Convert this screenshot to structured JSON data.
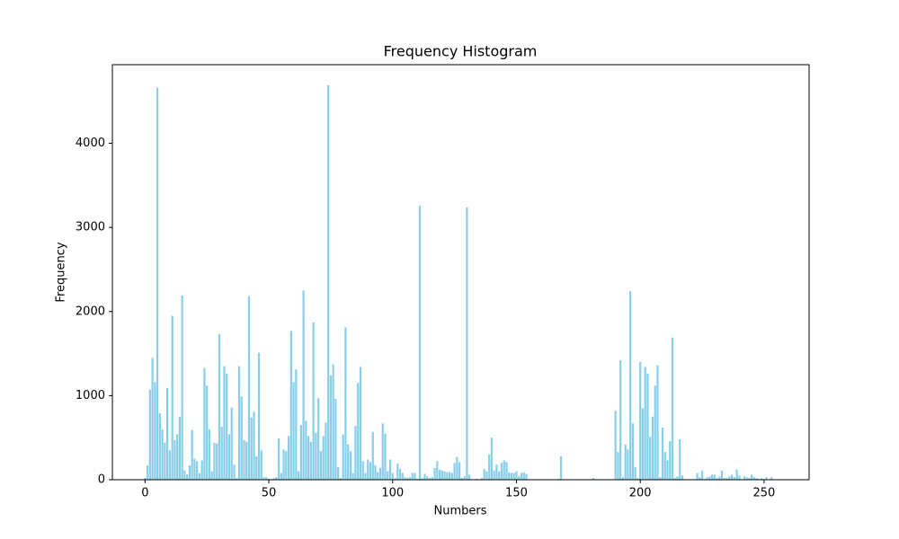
{
  "chart_data": {
    "type": "bar",
    "title": "Frequency Histogram",
    "x_label": "Numbers",
    "y_label": "Frequency",
    "color": "#87ceeb",
    "grid": false,
    "xlim": [
      -13.19,
      268.19
    ],
    "ylim": [
      0,
      4935
    ],
    "xticks": [
      0,
      50,
      100,
      150,
      200,
      250
    ],
    "yticks": [
      0,
      1000,
      2000,
      3000,
      4000
    ],
    "x": [
      0,
      1,
      2,
      3,
      4,
      5,
      6,
      7,
      8,
      9,
      10,
      11,
      12,
      13,
      14,
      15,
      16,
      17,
      18,
      19,
      20,
      21,
      22,
      23,
      24,
      25,
      26,
      27,
      28,
      29,
      30,
      31,
      32,
      33,
      34,
      35,
      36,
      37,
      38,
      39,
      40,
      41,
      42,
      43,
      44,
      45,
      46,
      47,
      48,
      49,
      50,
      51,
      52,
      53,
      54,
      55,
      56,
      57,
      58,
      59,
      60,
      61,
      62,
      63,
      64,
      65,
      66,
      67,
      68,
      69,
      70,
      71,
      72,
      73,
      74,
      75,
      76,
      77,
      78,
      79,
      80,
      81,
      82,
      83,
      84,
      85,
      86,
      87,
      88,
      89,
      90,
      91,
      92,
      93,
      94,
      95,
      96,
      97,
      98,
      99,
      100,
      101,
      102,
      103,
      104,
      105,
      106,
      107,
      108,
      109,
      110,
      111,
      112,
      113,
      114,
      115,
      116,
      117,
      118,
      119,
      120,
      121,
      122,
      123,
      124,
      125,
      126,
      127,
      128,
      129,
      130,
      131,
      132,
      133,
      134,
      135,
      136,
      137,
      138,
      139,
      140,
      141,
      142,
      143,
      144,
      145,
      146,
      147,
      148,
      149,
      150,
      151,
      152,
      153,
      154,
      155,
      156,
      157,
      158,
      159,
      160,
      161,
      162,
      163,
      164,
      165,
      166,
      167,
      168,
      169,
      170,
      171,
      172,
      173,
      174,
      175,
      176,
      177,
      178,
      179,
      180,
      181,
      182,
      183,
      184,
      185,
      186,
      187,
      188,
      189,
      190,
      191,
      192,
      193,
      194,
      195,
      196,
      197,
      198,
      199,
      200,
      201,
      202,
      203,
      204,
      205,
      206,
      207,
      208,
      209,
      210,
      211,
      212,
      213,
      214,
      215,
      216,
      217,
      218,
      219,
      220,
      221,
      222,
      223,
      224,
      225,
      226,
      227,
      228,
      229,
      230,
      231,
      232,
      233,
      234,
      235,
      236,
      237,
      238,
      239,
      240,
      241,
      242,
      243,
      244,
      245,
      246,
      247,
      248,
      249,
      250,
      251,
      252,
      253,
      254,
      255
    ],
    "values": [
      20,
      170,
      1070,
      1450,
      1160,
      4660,
      790,
      600,
      440,
      1090,
      350,
      1950,
      470,
      540,
      750,
      2190,
      110,
      60,
      170,
      590,
      250,
      220,
      80,
      230,
      1330,
      1120,
      600,
      100,
      440,
      430,
      1730,
      630,
      1350,
      1260,
      540,
      860,
      180,
      20,
      1350,
      990,
      470,
      450,
      2180,
      740,
      810,
      280,
      1510,
      350,
      30,
      30,
      10,
      0,
      20,
      30,
      490,
      80,
      360,
      340,
      520,
      1770,
      1160,
      1310,
      100,
      650,
      2250,
      700,
      520,
      450,
      1870,
      560,
      970,
      340,
      520,
      680,
      4690,
      1240,
      1370,
      960,
      150,
      20,
      540,
      1810,
      420,
      340,
      80,
      640,
      1150,
      1340,
      220,
      80,
      240,
      210,
      570,
      170,
      90,
      140,
      670,
      550,
      100,
      240,
      80,
      20,
      190,
      130,
      80,
      30,
      20,
      30,
      80,
      80,
      10,
      3260,
      20,
      70,
      40,
      20,
      30,
      140,
      220,
      120,
      110,
      100,
      90,
      90,
      80,
      200,
      270,
      210,
      20,
      40,
      3240,
      60,
      0,
      0,
      10,
      0,
      20,
      130,
      100,
      300,
      500,
      110,
      180,
      100,
      200,
      230,
      210,
      90,
      80,
      80,
      100,
      40,
      80,
      90,
      70,
      0,
      0,
      0,
      0,
      0,
      0,
      0,
      0,
      0,
      0,
      0,
      0,
      10,
      280,
      0,
      0,
      0,
      0,
      0,
      0,
      0,
      0,
      0,
      0,
      0,
      0,
      20,
      0,
      0,
      0,
      0,
      0,
      0,
      0,
      0,
      820,
      330,
      1420,
      30,
      420,
      360,
      2240,
      670,
      150,
      20,
      1400,
      850,
      1340,
      1260,
      510,
      750,
      1120,
      1360,
      30,
      620,
      330,
      230,
      460,
      1690,
      20,
      40,
      480,
      50,
      0,
      0,
      0,
      0,
      0,
      80,
      30,
      110,
      10,
      30,
      40,
      60,
      60,
      20,
      40,
      110,
      20,
      20,
      40,
      60,
      30,
      120,
      50,
      0,
      40,
      30,
      20,
      60,
      30,
      20,
      10,
      20,
      0,
      30,
      0,
      30,
      0,
      0
    ]
  }
}
